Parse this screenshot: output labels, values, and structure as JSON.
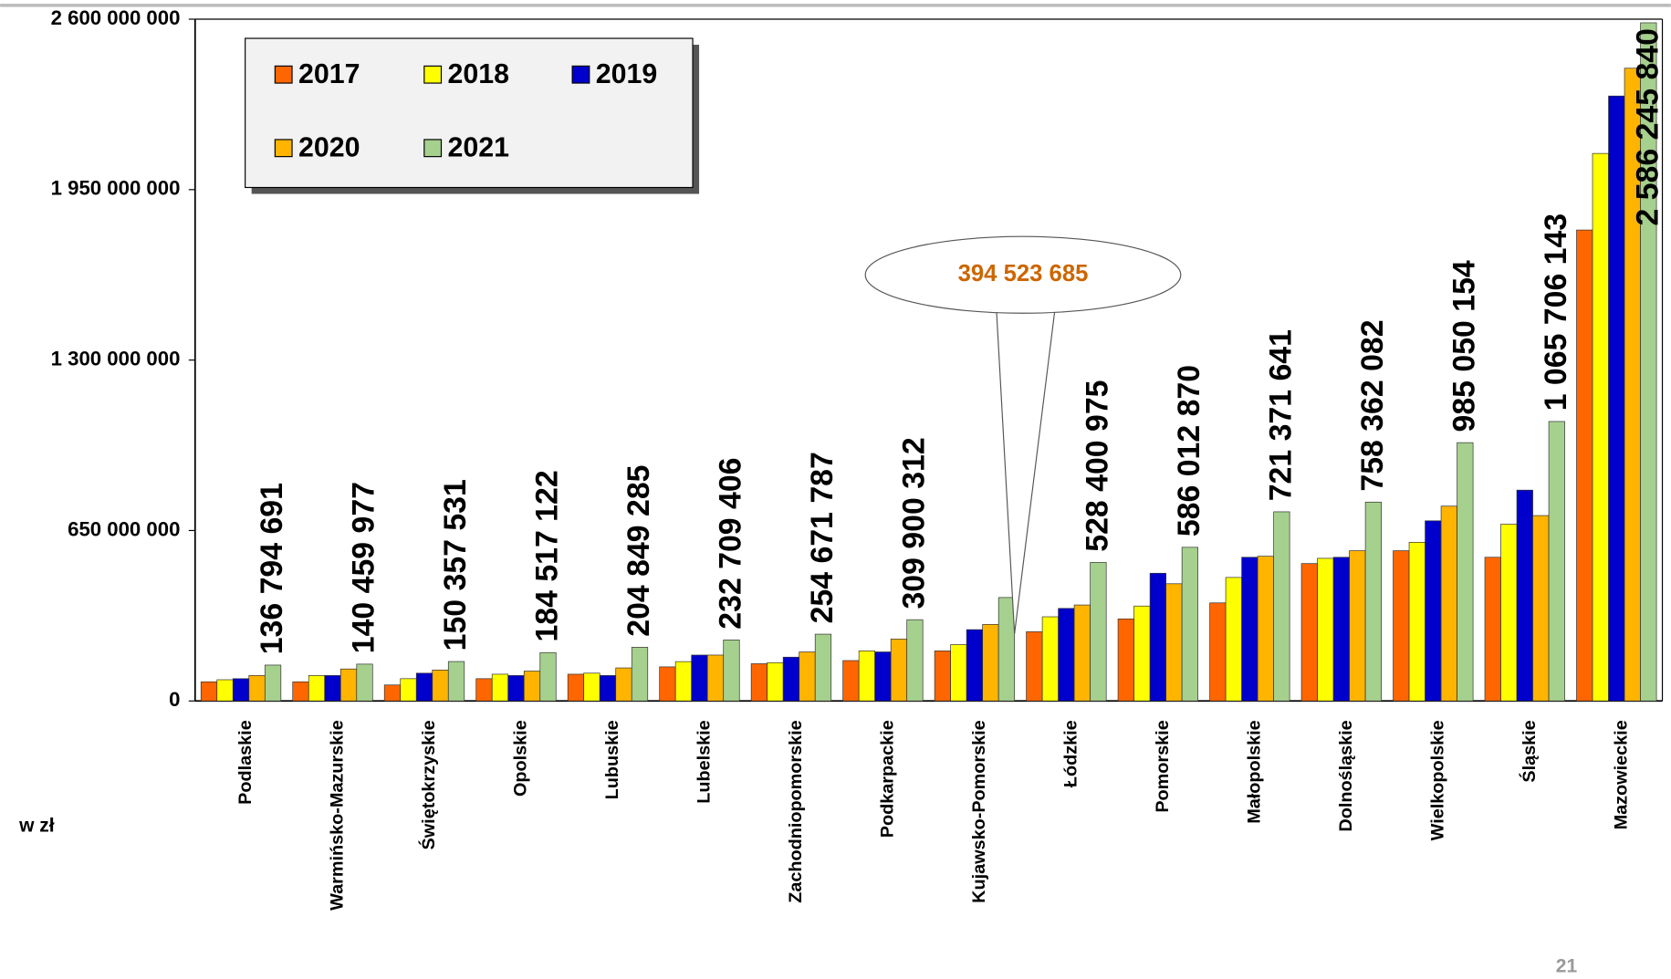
{
  "chart_data": {
    "type": "bar",
    "y_axis_label": "w zł",
    "page_number": "21",
    "categories": [
      "Podlaskie",
      "Warmińsko-Mazurskie",
      "Świętokrzyskie",
      "Opolskie",
      "Lubuskie",
      "Lubelskie",
      "Zachodniopomorskie",
      "Podkarpackie",
      "Kujawsko-Pomorskie",
      "Łódzkie",
      "Pomorskie",
      "Małopolskie",
      "Dolnośląskie",
      "Wielkopolskie",
      "Śląskie",
      "Mazowieckie"
    ],
    "series": [
      {
        "name": "2017",
        "color": "#ff6600",
        "values": [
          73000000,
          73000000,
          61000000,
          85000000,
          102000000,
          130000000,
          142000000,
          154000000,
          191000000,
          264000000,
          313000000,
          374000000,
          524000000,
          573000000,
          548000000,
          1796000000
        ]
      },
      {
        "name": "2018",
        "color": "#ffff00",
        "values": [
          81000000,
          97000000,
          85000000,
          102000000,
          106000000,
          150000000,
          146000000,
          191000000,
          215000000,
          321000000,
          362000000,
          471000000,
          544000000,
          605000000,
          674000000,
          2088000000
        ]
      },
      {
        "name": "2019",
        "color": "#0000cc",
        "values": [
          85000000,
          97000000,
          106000000,
          97000000,
          97000000,
          175000000,
          167000000,
          187000000,
          272000000,
          353000000,
          487000000,
          548000000,
          548000000,
          687000000,
          804000000,
          2307000000
        ]
      },
      {
        "name": "2020",
        "color": "#ffb400",
        "values": [
          97000000,
          122000000,
          118000000,
          114000000,
          126000000,
          175000000,
          187000000,
          236000000,
          292000000,
          366000000,
          447000000,
          552000000,
          573000000,
          743000000,
          707000000,
          2413000000
        ]
      },
      {
        "name": "2021",
        "color": "#a6d08e",
        "values": [
          136794691,
          140459977,
          150357531,
          184517122,
          204849285,
          232709406,
          254671787,
          309900312,
          394523685,
          528400975,
          586012870,
          721371641,
          758362082,
          985050154,
          1065706143,
          2586245840
        ],
        "value_labels": [
          "136 794 691",
          "140 459 977",
          "150 357 531",
          "184 517 122",
          "204 849 285",
          "232 709 406",
          "254 671 787",
          "309 900 312",
          "394 523 685",
          "528 400 975",
          "586 012 870",
          "721 371 641",
          "758 362 082",
          "985 050 154",
          "1 065 706 143",
          "2 586 245 840"
        ]
      }
    ],
    "ylim": [
      0,
      2600000000
    ],
    "yticks": [
      0,
      {
        "value": 650000000,
        "label": "650 000 000"
      },
      {
        "value": 1300000000,
        "label": "1 300 000 000"
      },
      {
        "value": 1950000000,
        "label": "1 950 000 000"
      },
      {
        "value": 2600000000,
        "label": "2 600 000 000"
      }
    ],
    "highlight_color": "#cc6600"
  }
}
